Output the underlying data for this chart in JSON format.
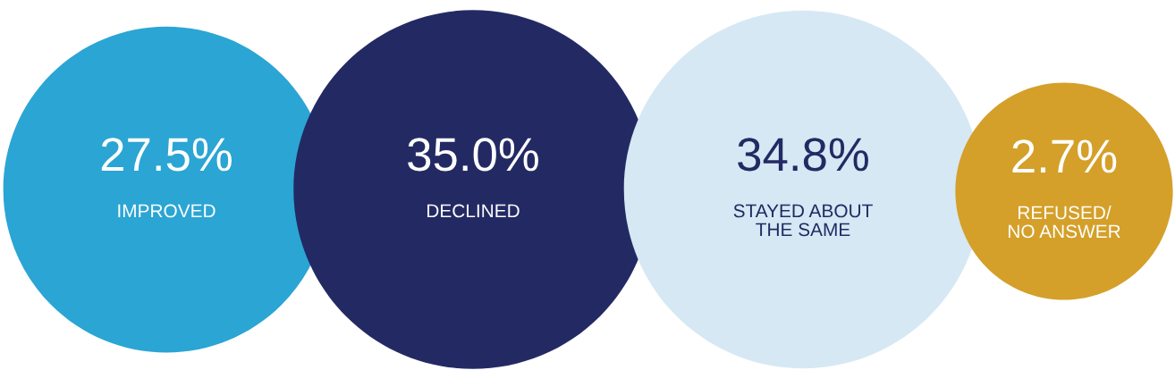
{
  "chart_data": {
    "type": "other",
    "categories": [
      "IMPROVED",
      "DECLINED",
      "STAYED ABOUT\nTHE SAME",
      "REFUSED/\nNO ANSWER"
    ],
    "values": [
      27.5,
      35.0,
      34.8,
      2.7
    ],
    "value_labels": [
      "27.5%",
      "35.0%",
      "34.8%",
      "2.7%"
    ],
    "colors": [
      "#2ba5d4",
      "#232a63",
      "#d6e8f4",
      "#d4a02a"
    ]
  }
}
